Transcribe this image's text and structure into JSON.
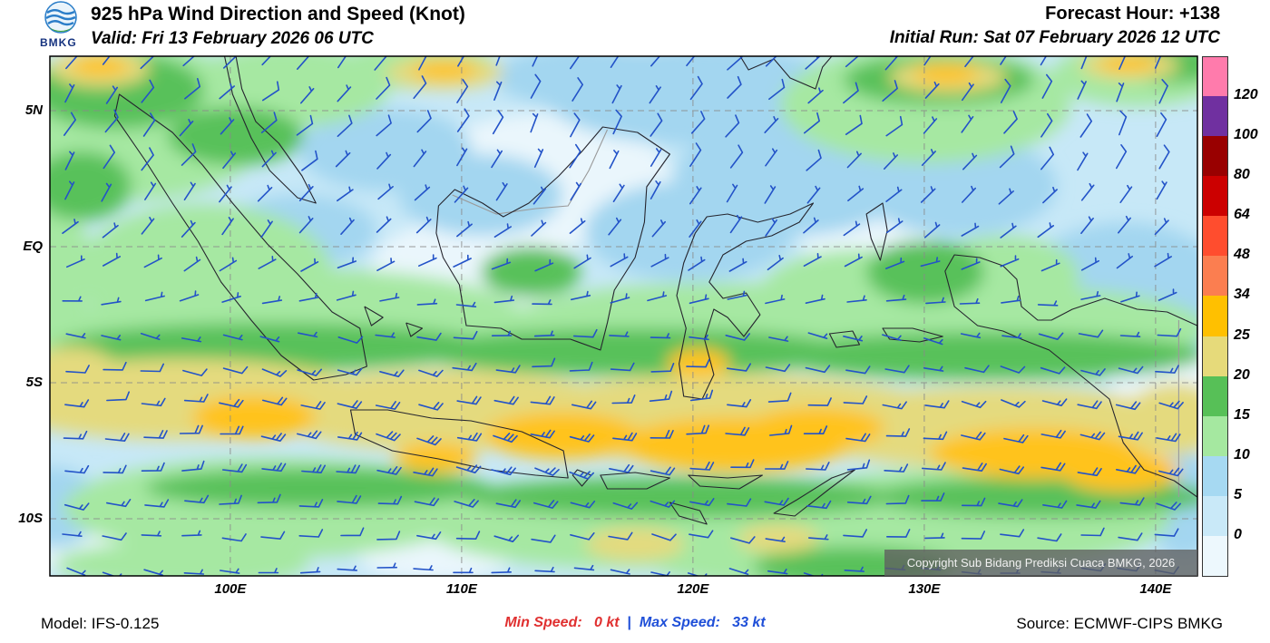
{
  "header": {
    "logo_text": "BMKG",
    "title": "925 hPa Wind Direction and Speed (Knot)",
    "valid": "Valid: Fri 13 February 2026 06 UTC",
    "forecast_hour": "Forecast Hour: +138",
    "initial_run": "Initial Run: Sat 07 February 2026 12 UTC"
  },
  "map": {
    "lat_labels": [
      {
        "text": "5N",
        "lat": 5
      },
      {
        "text": "EQ",
        "lat": 0
      },
      {
        "text": "5S",
        "lat": -5
      },
      {
        "text": "10S",
        "lat": -10
      }
    ],
    "lon_labels": [
      {
        "text": "100E",
        "lon": 100
      },
      {
        "text": "110E",
        "lon": 110
      },
      {
        "text": "120E",
        "lon": 120
      },
      {
        "text": "130E",
        "lon": 130
      },
      {
        "text": "140E",
        "lon": 140
      }
    ],
    "copyright": "Copyright Sub Bidang Prediksi Cuaca BMKG, 2026"
  },
  "legend": {
    "labels_top_to_bottom": [
      "120",
      "100",
      "80",
      "64",
      "48",
      "34",
      "25",
      "20",
      "15",
      "10",
      "5",
      "0"
    ],
    "colors_top_to_bottom": [
      "#FF7BAC",
      "#7030A0",
      "#990000",
      "#CC0000",
      "#FF4D2E",
      "#FB7E50",
      "#FFC000",
      "#E6DA7A",
      "#57C057",
      "#A5E8A0",
      "#A6D9F2",
      "#C9E9F8",
      "#EDF8FD"
    ]
  },
  "footer": {
    "model": "Model: IFS-0.125",
    "min_speed_label": "Min Speed:",
    "min_speed_value": "0 kt",
    "separator": "|",
    "max_speed_label": "Max Speed:",
    "max_speed_value": "33 kt",
    "source": "Source: ECMWF-CIPS BMKG"
  },
  "wind": {
    "min_kt": 0,
    "max_kt": 33,
    "barb_color": "#2353C8",
    "field_colors": {
      "c0": "#EAF6FC",
      "c1": "#C7E8F7",
      "c2": "#A3D6F0",
      "c3": "#A6E8A2",
      "c4": "#59C15A",
      "c5": "#E4DA7E",
      "c6": "#FFC31C"
    }
  }
}
